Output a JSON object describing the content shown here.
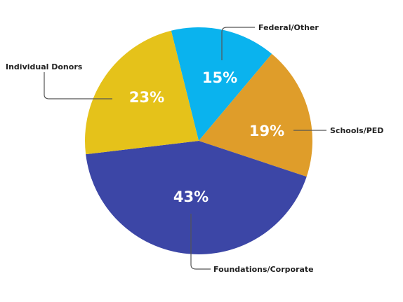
{
  "chart_data": {
    "type": "pie",
    "title": "",
    "slices": [
      {
        "label": "Federal/Other",
        "value": 15,
        "display": "15%",
        "color": "#0AB3EE"
      },
      {
        "label": "Schools/PED",
        "value": 19,
        "display": "19%",
        "color": "#DF9D2A"
      },
      {
        "label": "Foundations/Corporate",
        "value": 43,
        "display": "43%",
        "color": "#3C46A6"
      },
      {
        "label": "Individual Donors",
        "value": 23,
        "display": "23%",
        "color": "#E5C21A"
      }
    ],
    "start_angle_deg": -14,
    "direction": "clockwise"
  }
}
